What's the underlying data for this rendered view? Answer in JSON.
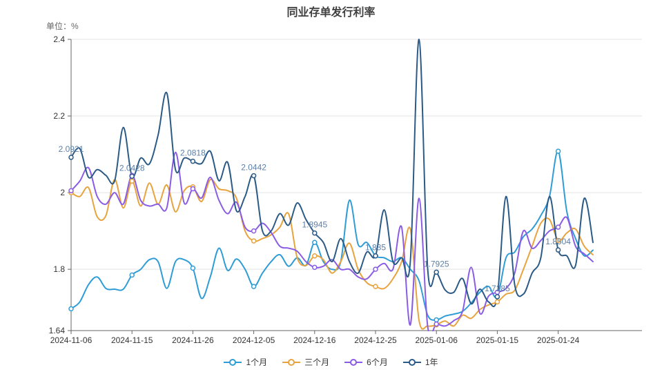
{
  "title": "同业存单发行利率",
  "unit_label": "单位：%",
  "chart_data": {
    "type": "line",
    "title": "同业存单发行利率",
    "ylabel": "单位：%",
    "smooth": true,
    "grid": true,
    "legend_position": "bottom",
    "ylim": [
      1.64,
      2.4
    ],
    "y_ticks": [
      {
        "value": 2.4,
        "label": "2.4"
      },
      {
        "value": 2.2,
        "label": "2.2"
      },
      {
        "value": 2.0,
        "label": "2"
      },
      {
        "value": 1.8,
        "label": "1.8"
      },
      {
        "value": 1.64,
        "label": "1.64"
      }
    ],
    "x_tick_indices": [
      0,
      7,
      14,
      21,
      28,
      35,
      42,
      49,
      56
    ],
    "x_tick_labels": [
      "2024-11-06",
      "2024-11-15",
      "2024-11-26",
      "2024-12-05",
      "2024-12-16",
      "2024-12-25",
      "2025-01-06",
      "2025-01-15",
      "2025-01-24"
    ],
    "marker_interval": 7,
    "label_color": "#5b7fa6",
    "axis_color": "#666666",
    "tick_label_color": "#333333",
    "grid_color": "#e3e3e3",
    "categories": [
      "2024-11-06",
      "2024-11-07",
      "2024-11-08",
      "2024-11-11",
      "2024-11-12",
      "2024-11-13",
      "2024-11-14",
      "2024-11-15",
      "2024-11-18",
      "2024-11-19",
      "2024-11-20",
      "2024-11-21",
      "2024-11-22",
      "2024-11-25",
      "2024-11-26",
      "2024-11-27",
      "2024-11-28",
      "2024-11-29",
      "2024-12-02",
      "2024-12-03",
      "2024-12-04",
      "2024-12-05",
      "2024-12-06",
      "2024-12-09",
      "2024-12-10",
      "2024-12-11",
      "2024-12-12",
      "2024-12-13",
      "2024-12-16",
      "2024-12-17",
      "2024-12-18",
      "2024-12-19",
      "2024-12-20",
      "2024-12-23",
      "2024-12-24",
      "2024-12-25",
      "2024-12-26",
      "2024-12-27",
      "2024-12-30",
      "2024-12-31",
      "2025-01-02",
      "2025-01-03",
      "2025-01-06",
      "2025-01-07",
      "2025-01-08",
      "2025-01-09",
      "2025-01-10",
      "2025-01-13",
      "2025-01-14",
      "2025-01-15",
      "2025-01-16",
      "2025-01-17",
      "2025-01-20",
      "2025-01-21",
      "2025-01-22",
      "2025-01-23",
      "2025-01-24",
      "2025-01-27",
      "2025-02-05",
      "2025-02-06",
      "2025-02-07"
    ],
    "series": [
      {
        "name": "1个月",
        "color": "#2e9cd6",
        "values": [
          1.697,
          1.715,
          1.76,
          1.78,
          1.75,
          1.748,
          1.748,
          1.785,
          1.8,
          1.825,
          1.82,
          1.75,
          1.82,
          1.825,
          1.803,
          1.724,
          1.78,
          1.855,
          1.797,
          1.827,
          1.8,
          1.755,
          1.79,
          1.82,
          1.838,
          1.808,
          1.83,
          1.81,
          1.87,
          1.82,
          1.8,
          1.82,
          1.98,
          1.865,
          1.87,
          1.835,
          1.83,
          1.82,
          1.83,
          1.8,
          1.77,
          1.68,
          1.668,
          1.678,
          1.683,
          1.69,
          1.712,
          1.74,
          1.755,
          1.728,
          1.83,
          1.845,
          1.885,
          1.905,
          1.94,
          1.99,
          2.108,
          1.95,
          1.88,
          1.835,
          1.85
        ]
      },
      {
        "name": "三个月",
        "color": "#e8a33d",
        "values": [
          2.0,
          1.99,
          2.013,
          1.937,
          1.94,
          2.034,
          1.96,
          2.03,
          1.965,
          2.025,
          1.97,
          2.02,
          1.95,
          2.005,
          2.015,
          1.977,
          2.034,
          2.01,
          2.005,
          1.986,
          1.9,
          1.874,
          1.88,
          1.89,
          1.91,
          1.945,
          1.83,
          1.81,
          1.835,
          1.825,
          1.79,
          1.82,
          1.868,
          1.8,
          1.765,
          1.755,
          1.75,
          1.775,
          1.82,
          1.905,
          1.667,
          1.652,
          1.655,
          1.665,
          1.652,
          1.68,
          1.672,
          1.695,
          1.707,
          1.715,
          1.735,
          1.745,
          1.8,
          1.86,
          1.92,
          1.93,
          1.875,
          1.895,
          1.905,
          1.86,
          1.838
        ]
      },
      {
        "name": "6个月",
        "color": "#8a5ce6",
        "values": [
          2.005,
          2.03,
          2.065,
          1.99,
          1.97,
          2.0,
          1.97,
          2.045,
          1.98,
          1.965,
          1.97,
          1.96,
          2.105,
          1.973,
          2.01,
          1.986,
          2.04,
          1.98,
          1.945,
          1.975,
          1.91,
          1.9,
          1.92,
          1.896,
          1.86,
          1.855,
          1.847,
          1.82,
          1.805,
          1.808,
          1.825,
          1.8,
          1.8,
          1.78,
          1.775,
          1.8,
          1.815,
          1.8,
          1.91,
          1.655,
          1.985,
          1.65,
          1.657,
          1.652,
          1.666,
          1.69,
          1.805,
          1.685,
          1.73,
          1.74,
          1.75,
          1.79,
          1.9,
          1.855,
          1.875,
          1.9,
          1.91,
          1.935,
          1.86,
          1.84,
          1.82
        ]
      },
      {
        "name": "1年",
        "color": "#2b5a87",
        "values": [
          2.0921,
          2.115,
          2.04,
          2.06,
          2.045,
          2.03,
          2.17,
          2.0428,
          2.09,
          2.075,
          2.15,
          2.26,
          2.06,
          2.09,
          2.0818,
          2.076,
          2.108,
          2.031,
          2.079,
          1.953,
          1.99,
          2.0442,
          1.9,
          1.9,
          1.945,
          1.915,
          1.973,
          1.93,
          1.8945,
          1.87,
          1.82,
          1.88,
          1.82,
          1.79,
          1.845,
          1.835,
          1.955,
          1.82,
          1.83,
          1.82,
          2.4,
          1.8,
          1.7925,
          1.746,
          1.74,
          1.776,
          1.71,
          1.748,
          1.715,
          1.7285,
          1.99,
          1.76,
          1.735,
          1.79,
          1.83,
          1.99,
          1.8504,
          1.835,
          1.81,
          1.985,
          1.87
        ],
        "point_labels": {
          "0": "2.0921",
          "7": "2.0428",
          "14": "2.0818",
          "21": "2.0442",
          "28": "1.8945",
          "35": "1.835",
          "42": "1.7925",
          "49": "1.7285",
          "56": "1.8504"
        }
      }
    ]
  }
}
